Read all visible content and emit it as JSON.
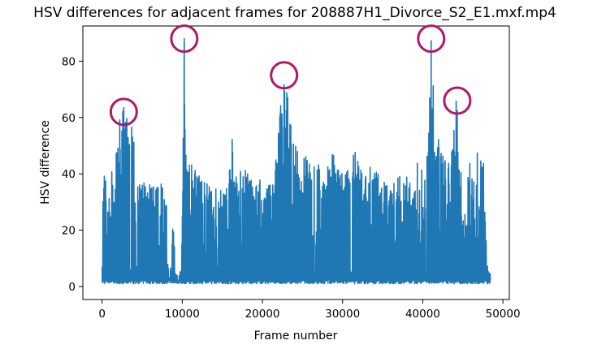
{
  "chart_data": {
    "type": "line",
    "title": "HSV differences for adjacent frames for 208887H1_Divorce_S2_E1.mxf.mp4",
    "xlabel": "Frame number",
    "ylabel": "HSV difference",
    "xlim": [
      -2400,
      50800
    ],
    "ylim": [
      -4.6,
      92.5
    ],
    "xticks": [
      0,
      10000,
      20000,
      30000,
      40000,
      50000
    ],
    "yticks": [
      0,
      20,
      40,
      60,
      80
    ],
    "x_tick_labels": [
      "0",
      "10000",
      "20000",
      "30000",
      "40000",
      "50000"
    ],
    "y_tick_labels": [
      "0",
      "20",
      "40",
      "60",
      "80"
    ],
    "grid": false,
    "legend": "none",
    "line_color": "#1f77b4",
    "highlight_color": "#b0186b",
    "series": [
      {
        "values_note": "",
        "x_start": 0,
        "x_end": 48400,
        "baseline": 1.5,
        "envelope": [
          [
            0,
            46
          ],
          [
            300,
            42
          ],
          [
            600,
            39
          ],
          [
            900,
            41
          ],
          [
            1200,
            45
          ],
          [
            1500,
            38
          ],
          [
            1800,
            50
          ],
          [
            2000,
            57
          ],
          [
            2300,
            62
          ],
          [
            2600,
            64
          ],
          [
            3000,
            62
          ],
          [
            3400,
            60
          ],
          [
            3800,
            57
          ],
          [
            4300,
            41
          ],
          [
            4700,
            38
          ],
          [
            5200,
            37
          ],
          [
            5700,
            40
          ],
          [
            6200,
            38
          ],
          [
            6700,
            36
          ],
          [
            7200,
            35
          ],
          [
            7700,
            40
          ],
          [
            8000,
            37
          ],
          [
            8300,
            3
          ],
          [
            8600,
            4
          ],
          [
            8900,
            30
          ],
          [
            9100,
            5
          ],
          [
            9500,
            4
          ],
          [
            9900,
            6
          ],
          [
            10100,
            55
          ],
          [
            10250,
            88
          ],
          [
            10400,
            47
          ],
          [
            10800,
            45
          ],
          [
            11300,
            44
          ],
          [
            11800,
            41
          ],
          [
            12300,
            43
          ],
          [
            12800,
            40
          ],
          [
            13300,
            38
          ],
          [
            13800,
            37
          ],
          [
            14300,
            36
          ],
          [
            14800,
            37
          ],
          [
            15300,
            35
          ],
          [
            15800,
            38
          ],
          [
            16100,
            60
          ],
          [
            16400,
            45
          ],
          [
            16900,
            42
          ],
          [
            17400,
            41
          ],
          [
            17900,
            43
          ],
          [
            18400,
            40
          ],
          [
            18900,
            39
          ],
          [
            19400,
            38
          ],
          [
            19900,
            40
          ],
          [
            20400,
            39
          ],
          [
            20900,
            41
          ],
          [
            21400,
            42
          ],
          [
            21900,
            50
          ],
          [
            22300,
            68
          ],
          [
            22600,
            71
          ],
          [
            22900,
            73
          ],
          [
            23100,
            75
          ],
          [
            23400,
            60
          ],
          [
            23800,
            55
          ],
          [
            24300,
            52
          ],
          [
            24800,
            48
          ],
          [
            25300,
            47
          ],
          [
            25800,
            47
          ],
          [
            26300,
            46
          ],
          [
            26800,
            44
          ],
          [
            27300,
            43
          ],
          [
            27800,
            42
          ],
          [
            28300,
            45
          ],
          [
            28800,
            50
          ],
          [
            29300,
            44
          ],
          [
            29800,
            41
          ],
          [
            30300,
            40
          ],
          [
            30800,
            44
          ],
          [
            31300,
            50
          ],
          [
            31800,
            46
          ],
          [
            32300,
            44
          ],
          [
            32800,
            42
          ],
          [
            33300,
            45
          ],
          [
            33800,
            43
          ],
          [
            34300,
            41
          ],
          [
            34800,
            40
          ],
          [
            35300,
            38
          ],
          [
            35800,
            37
          ],
          [
            36300,
            38
          ],
          [
            36800,
            40
          ],
          [
            37300,
            39
          ],
          [
            37800,
            41
          ],
          [
            38300,
            38
          ],
          [
            38800,
            36
          ],
          [
            39300,
            44
          ],
          [
            39800,
            43
          ],
          [
            40300,
            48
          ],
          [
            40700,
            55
          ],
          [
            41000,
            87
          ],
          [
            41200,
            88
          ],
          [
            41400,
            60
          ],
          [
            41800,
            57
          ],
          [
            42300,
            48
          ],
          [
            42800,
            46
          ],
          [
            43300,
            44
          ],
          [
            43800,
            53
          ],
          [
            44200,
            69
          ],
          [
            44600,
            43
          ],
          [
            45100,
            41
          ],
          [
            45600,
            43
          ],
          [
            46100,
            45
          ],
          [
            46600,
            49
          ],
          [
            47100,
            45
          ],
          [
            47600,
            46
          ],
          [
            48000,
            8
          ],
          [
            48400,
            6
          ]
        ]
      }
    ],
    "highlighted_peaks": [
      {
        "x": 2700,
        "y": 62
      },
      {
        "x": 10250,
        "y": 88
      },
      {
        "x": 22700,
        "y": 75
      },
      {
        "x": 41050,
        "y": 88
      },
      {
        "x": 44300,
        "y": 66
      }
    ]
  }
}
